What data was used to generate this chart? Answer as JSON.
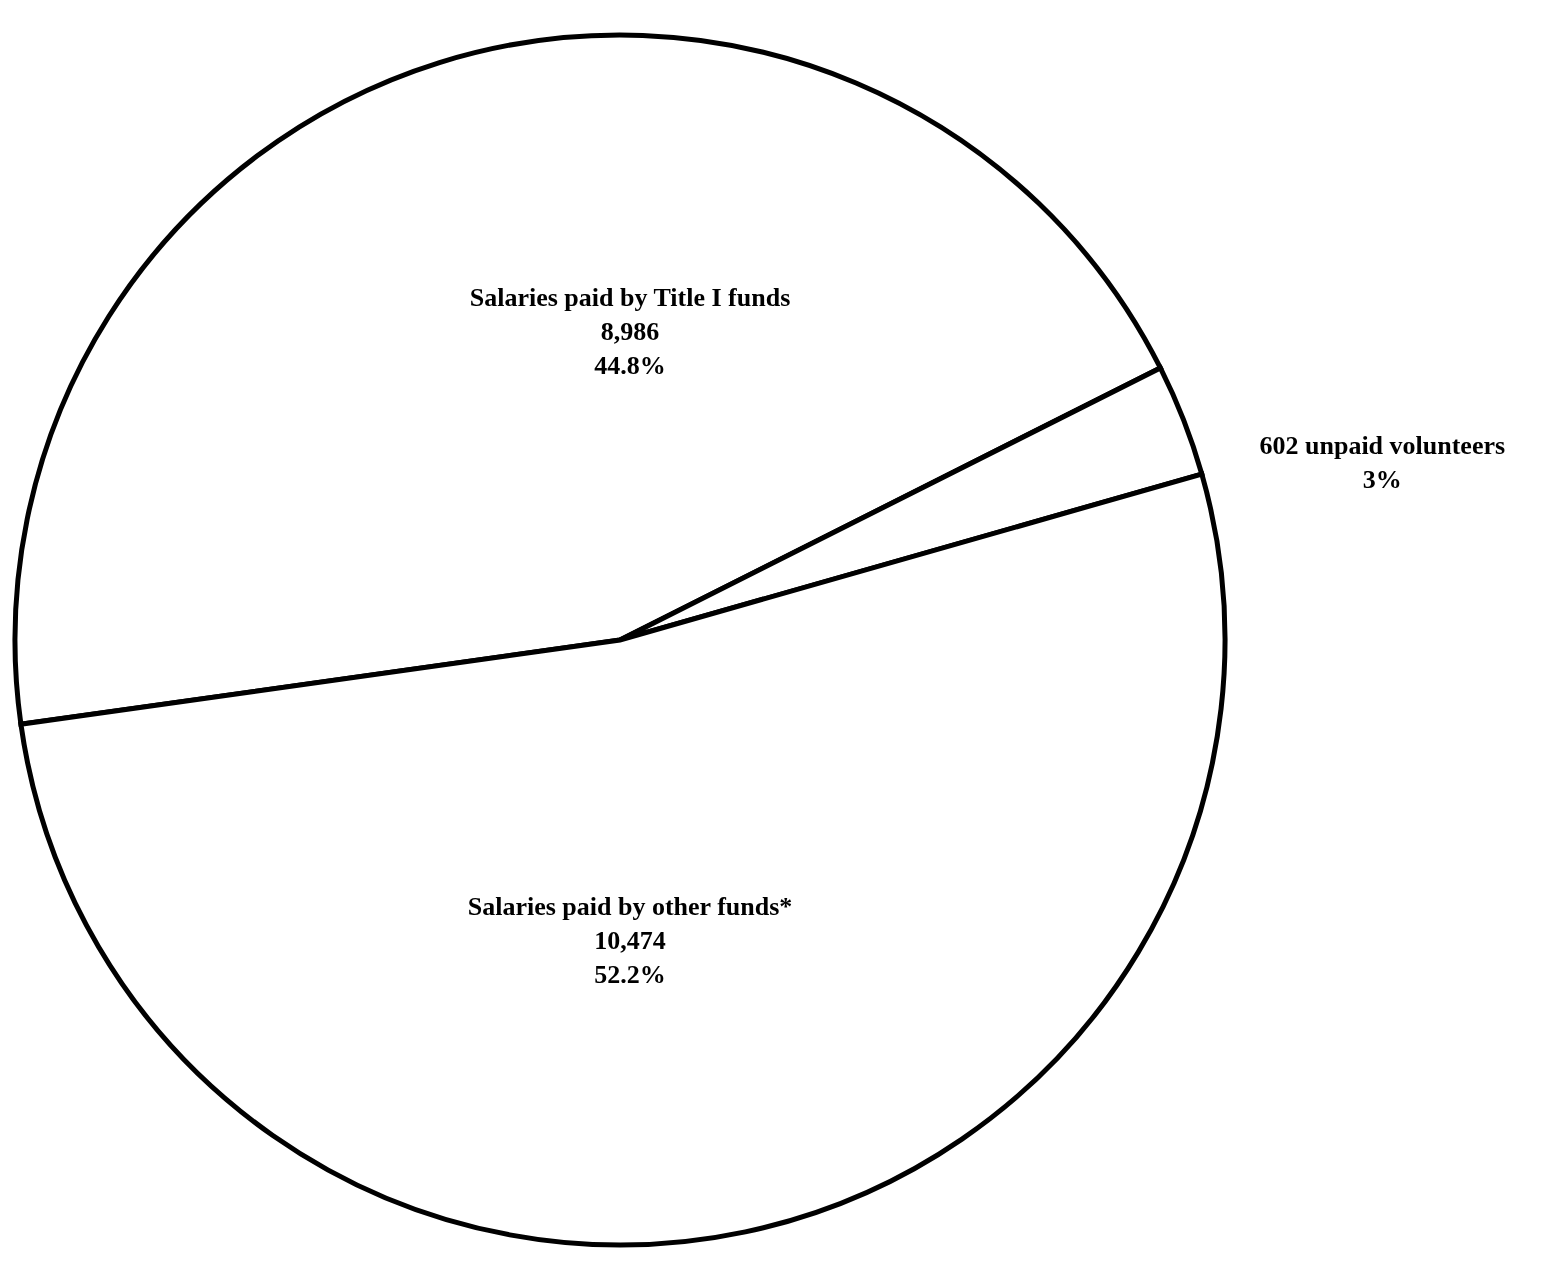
{
  "chart_data": {
    "type": "pie",
    "categories": [
      "Salaries paid by Title I funds\n8,986",
      "602 unpaid volunteers",
      "Salaries paid by other funds*\n10,474"
    ],
    "values": [
      44.8,
      3,
      52.2
    ],
    "value_labels": [
      "44.8%",
      "3%",
      "52.2%"
    ],
    "colors": [
      "#ffffff",
      "#ffffff",
      "#ffffff"
    ]
  }
}
